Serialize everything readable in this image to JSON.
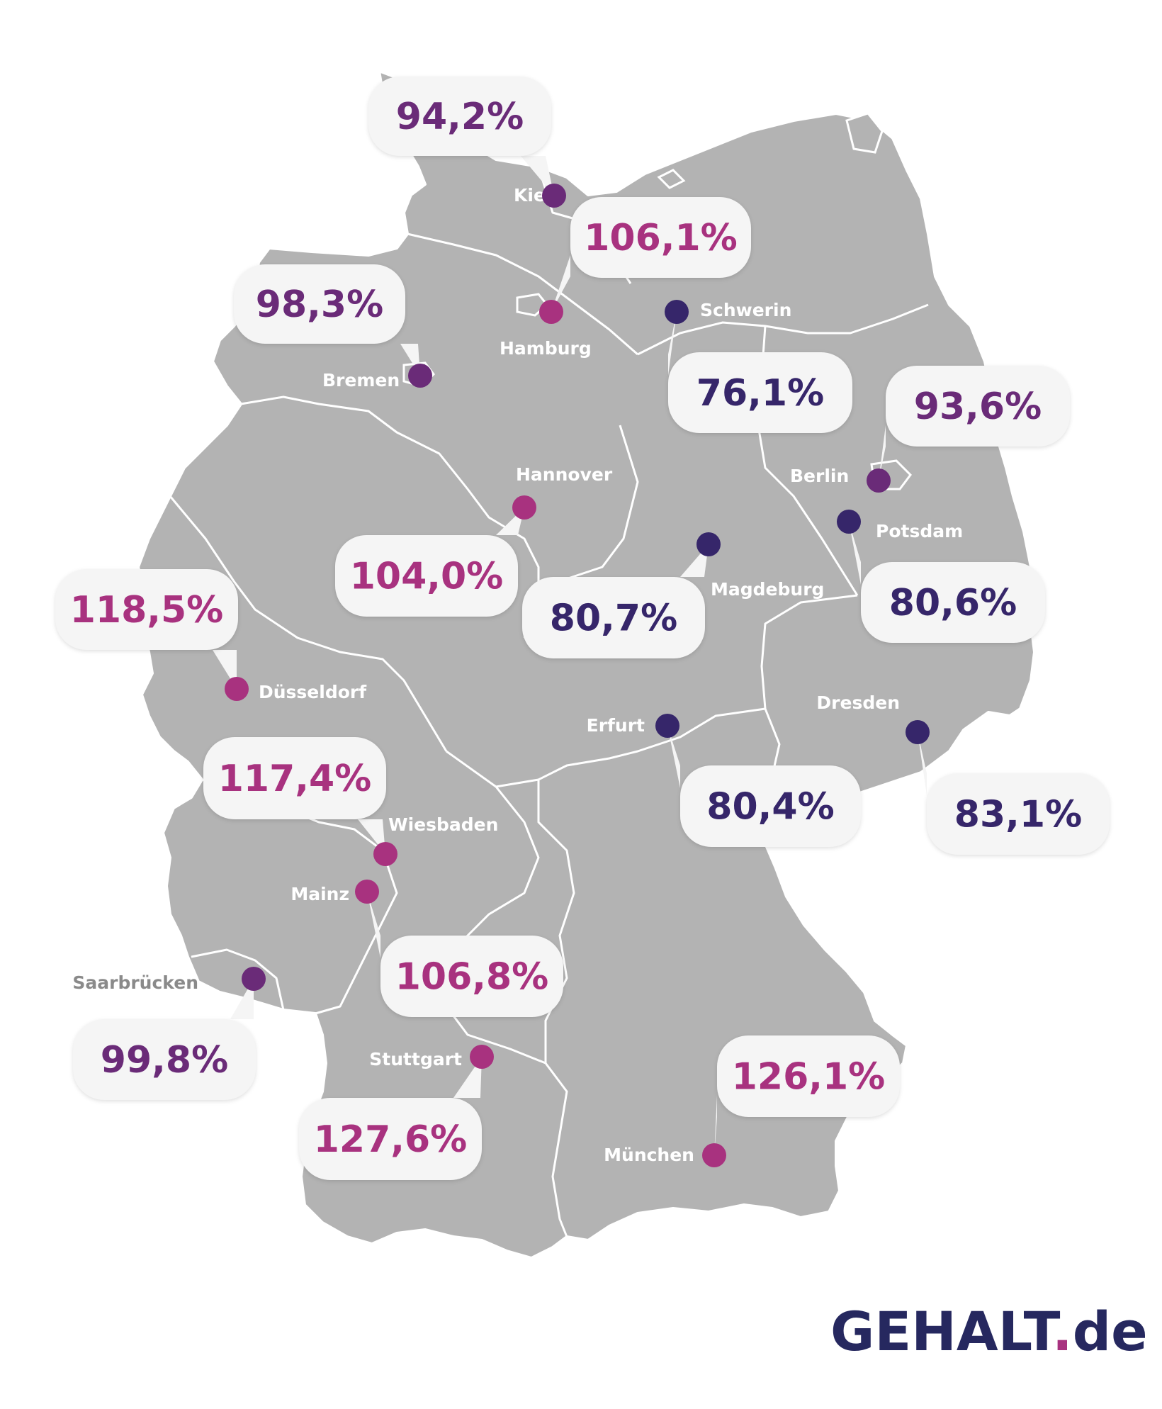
{
  "brand": {
    "name": "GEHALT",
    "dot": ".",
    "tld": "de"
  },
  "colors": {
    "map_fill": "#b3b3b3",
    "border": "#ffffff",
    "bubble": "#f5f5f5",
    "low": "#36266a",
    "mid": "#6a2b78",
    "high": "#a8327f",
    "logo": "#26285f"
  },
  "cities": [
    {
      "name": "Kiel",
      "value": "94,2%",
      "tone": "mid"
    },
    {
      "name": "Hamburg",
      "value": "106,1%",
      "tone": "high"
    },
    {
      "name": "Bremen",
      "value": "98,3%",
      "tone": "mid"
    },
    {
      "name": "Schwerin",
      "value": "76,1%",
      "tone": "low"
    },
    {
      "name": "Berlin",
      "value": "93,6%",
      "tone": "mid"
    },
    {
      "name": "Hannover",
      "value": "104,0%",
      "tone": "high"
    },
    {
      "name": "Potsdam",
      "value": "80,6%",
      "tone": "low"
    },
    {
      "name": "Magdeburg",
      "value": "80,7%",
      "tone": "low"
    },
    {
      "name": "Düsseldorf",
      "value": "118,5%",
      "tone": "high"
    },
    {
      "name": "Erfurt",
      "value": "80,4%",
      "tone": "low"
    },
    {
      "name": "Dresden",
      "value": "83,1%",
      "tone": "low"
    },
    {
      "name": "Wiesbaden",
      "value": "117,4%",
      "tone": "high"
    },
    {
      "name": "Mainz",
      "value": "106,8%",
      "tone": "high"
    },
    {
      "name": "Saarbrücken",
      "value": "99,8%",
      "tone": "mid"
    },
    {
      "name": "Stuttgart",
      "value": "127,6%",
      "tone": "high"
    },
    {
      "name": "München",
      "value": "126,1%",
      "tone": "high"
    }
  ]
}
